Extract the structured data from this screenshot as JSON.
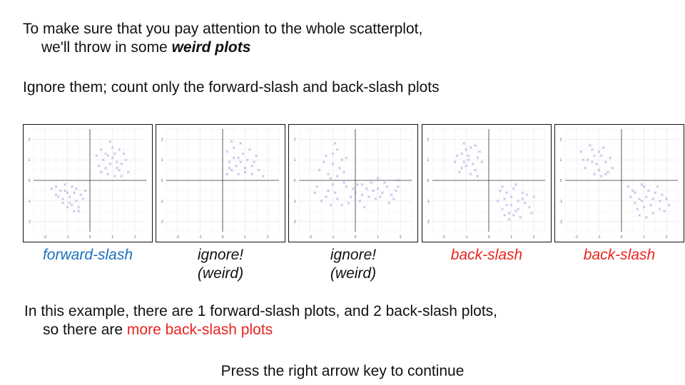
{
  "intro": {
    "line1": "To make sure that you pay attention to the whole scatterplot,",
    "line2_prefix": "we'll throw in some ",
    "line2_emph": "weird plots",
    "line3": "Ignore them; count only the forward-slash and back-slash plots"
  },
  "plots": [
    {
      "caption_lines": [
        "forward-slash"
      ],
      "caption_color": "#1a6fbf"
    },
    {
      "caption_lines": [
        "ignore!",
        "(weird)"
      ],
      "caption_color": "#111111"
    },
    {
      "caption_lines": [
        "ignore!",
        "(weird)"
      ],
      "caption_color": "#111111"
    },
    {
      "caption_lines": [
        "back-slash"
      ],
      "caption_color": "#e8231e"
    },
    {
      "caption_lines": [
        "back-slash"
      ],
      "caption_color": "#e8231e"
    }
  ],
  "conclusion": {
    "line1": "In this example, there are 1 forward-slash plots, and 2 back-slash plots,",
    "line2_prefix": "so there are ",
    "line2_highlight": "more back-slash plots"
  },
  "footer": {
    "instruction": "Press the right arrow key to continue"
  },
  "colors": {
    "highlight": "#e8231e",
    "forward": "#1a6fbf",
    "marker": "#8c86d6"
  },
  "chart_data": [
    {
      "type": "scatter",
      "xlim": [
        -2.5,
        2.5
      ],
      "ylim": [
        -2.5,
        2.5
      ],
      "x_ticks": [
        -2,
        -1,
        0,
        1,
        2
      ],
      "y_ticks": [
        -2,
        -1,
        0,
        1,
        2
      ],
      "grid": true,
      "marker": "x",
      "points": [
        [
          0.5,
          1.5
        ],
        [
          0.8,
          1.2
        ],
        [
          1.0,
          1.6
        ],
        [
          1.2,
          0.9
        ],
        [
          0.7,
          0.6
        ],
        [
          1.5,
          1.3
        ],
        [
          0.9,
          1.9
        ],
        [
          1.3,
          0.5
        ],
        [
          0.6,
          1.0
        ],
        [
          1.1,
          0.2
        ],
        [
          1.4,
          0.8
        ],
        [
          0.4,
          0.7
        ],
        [
          1.7,
          0.4
        ],
        [
          0.8,
          0.3
        ],
        [
          1.0,
          1.1
        ],
        [
          1.3,
          1.5
        ],
        [
          0.7,
          1.3
        ],
        [
          1.6,
          1.0
        ],
        [
          0.5,
          0.4
        ],
        [
          1.2,
          0.6
        ],
        [
          0.9,
          0.8
        ],
        [
          1.4,
          0.2
        ],
        [
          0.3,
          1.2
        ],
        [
          1.1,
          1.3
        ],
        [
          -0.5,
          -1.5
        ],
        [
          -0.8,
          -1.2
        ],
        [
          -1.0,
          -0.6
        ],
        [
          -1.2,
          -0.9
        ],
        [
          -0.7,
          -0.6
        ],
        [
          -1.5,
          -0.3
        ],
        [
          -0.9,
          -1.1
        ],
        [
          -1.3,
          -0.5
        ],
        [
          -0.6,
          -1.0
        ],
        [
          -1.1,
          -0.2
        ],
        [
          -1.4,
          -0.8
        ],
        [
          -0.4,
          -0.7
        ],
        [
          -1.7,
          -0.4
        ],
        [
          -0.8,
          -0.3
        ],
        [
          -1.0,
          -1.3
        ],
        [
          -0.3,
          -0.9
        ],
        [
          -0.6,
          -0.4
        ],
        [
          -1.2,
          -1.1
        ],
        [
          -0.9,
          -0.8
        ],
        [
          -0.5,
          -1.3
        ],
        [
          -1.5,
          -0.7
        ],
        [
          -0.7,
          -1.5
        ],
        [
          -0.2,
          -0.5
        ],
        [
          -1.1,
          -0.5
        ]
      ]
    },
    {
      "type": "scatter",
      "xlim": [
        -2.5,
        2.5
      ],
      "ylim": [
        -2.5,
        2.5
      ],
      "x_ticks": [
        -2,
        -1,
        0,
        1,
        2
      ],
      "y_ticks": [
        -2,
        -1,
        0,
        1,
        2
      ],
      "grid": true,
      "marker": "x",
      "points": [
        [
          0.2,
          1.4
        ],
        [
          0.5,
          1.1
        ],
        [
          0.8,
          1.8
        ],
        [
          1.1,
          1.0
        ],
        [
          0.4,
          0.5
        ],
        [
          1.3,
          0.7
        ],
        [
          0.7,
          0.3
        ],
        [
          1.6,
          0.5
        ],
        [
          0.3,
          0.9
        ],
        [
          1.0,
          0.4
        ],
        [
          0.9,
          1.3
        ],
        [
          1.4,
          0.9
        ],
        [
          0.6,
          0.7
        ],
        [
          1.8,
          0.2
        ],
        [
          0.2,
          0.3
        ],
        [
          0.5,
          1.6
        ],
        [
          1.2,
          1.5
        ],
        [
          0.8,
          0.9
        ],
        [
          1.5,
          1.2
        ],
        [
          0.4,
          1.9
        ],
        [
          1.0,
          0.6
        ],
        [
          0.3,
          0.6
        ],
        [
          0.7,
          1.1
        ],
        [
          1.3,
          0.3
        ]
      ]
    },
    {
      "type": "scatter",
      "xlim": [
        -2.5,
        2.5
      ],
      "ylim": [
        -2.5,
        2.5
      ],
      "x_ticks": [
        -2,
        -1,
        0,
        1,
        2
      ],
      "y_ticks": [
        -2,
        -1,
        0,
        1,
        2
      ],
      "grid": true,
      "marker": "x",
      "points": [
        [
          -1.6,
          0.5
        ],
        [
          -1.3,
          1.2
        ],
        [
          -1.0,
          0.8
        ],
        [
          -0.8,
          1.5
        ],
        [
          -0.6,
          1.0
        ],
        [
          -1.2,
          0.3
        ],
        [
          -0.9,
          1.8
        ],
        [
          -0.5,
          0.4
        ],
        [
          -1.4,
          0.9
        ],
        [
          -0.7,
          0.6
        ],
        [
          -1.0,
          1.3
        ],
        [
          -0.4,
          1.1
        ],
        [
          -1.1,
          0.1
        ],
        [
          -0.8,
          0.2
        ],
        [
          -1.7,
          -0.3
        ],
        [
          -1.2,
          -0.5
        ],
        [
          -0.8,
          -0.9
        ],
        [
          -0.4,
          -0.3
        ],
        [
          0.0,
          -0.6
        ],
        [
          0.3,
          -0.2
        ],
        [
          0.6,
          -0.8
        ],
        [
          1.0,
          -0.4
        ],
        [
          1.3,
          -0.1
        ],
        [
          1.6,
          -0.7
        ],
        [
          1.9,
          -0.3
        ],
        [
          -1.5,
          -1.0
        ],
        [
          -1.0,
          -0.2
        ],
        [
          -0.6,
          -1.2
        ],
        [
          -0.2,
          -0.8
        ],
        [
          0.2,
          -1.0
        ],
        [
          0.5,
          -0.4
        ],
        [
          0.9,
          -0.9
        ],
        [
          1.2,
          -0.6
        ],
        [
          1.5,
          -1.1
        ],
        [
          1.8,
          -0.5
        ],
        [
          -1.3,
          -0.8
        ],
        [
          -0.9,
          -0.6
        ],
        [
          -0.5,
          -0.1
        ],
        [
          -0.1,
          -0.4
        ],
        [
          0.3,
          -0.7
        ],
        [
          0.7,
          -0.1
        ],
        [
          1.1,
          -0.8
        ],
        [
          1.4,
          -0.3
        ],
        [
          1.7,
          -0.9
        ],
        [
          -1.8,
          -0.6
        ],
        [
          0.1,
          -0.2
        ],
        [
          0.8,
          -0.5
        ],
        [
          -0.3,
          -1.1
        ],
        [
          1.0,
          0.1
        ],
        [
          -1.1,
          -1.2
        ],
        [
          0.4,
          -1.3
        ],
        [
          1.9,
          0.0
        ]
      ]
    },
    {
      "type": "scatter",
      "xlim": [
        -2.5,
        2.5
      ],
      "ylim": [
        -2.5,
        2.5
      ],
      "x_ticks": [
        -2,
        -1,
        0,
        1,
        2
      ],
      "y_ticks": [
        -2,
        -1,
        0,
        1,
        2
      ],
      "grid": true,
      "marker": "x",
      "points": [
        [
          -1.5,
          0.9
        ],
        [
          -1.2,
          1.3
        ],
        [
          -1.0,
          0.7
        ],
        [
          -0.8,
          1.6
        ],
        [
          -0.5,
          1.1
        ],
        [
          -1.3,
          0.4
        ],
        [
          -0.9,
          1.0
        ],
        [
          -0.6,
          0.5
        ],
        [
          -1.1,
          1.8
        ],
        [
          -0.7,
          0.8
        ],
        [
          -1.4,
          1.2
        ],
        [
          -0.4,
          1.4
        ],
        [
          -0.8,
          0.3
        ],
        [
          -1.0,
          1.5
        ],
        [
          -0.6,
          1.7
        ],
        [
          -1.2,
          0.6
        ],
        [
          -0.3,
          0.9
        ],
        [
          -0.9,
          1.2
        ],
        [
          -0.5,
          0.2
        ],
        [
          -1.1,
          0.9
        ],
        [
          0.5,
          -0.5
        ],
        [
          0.8,
          -1.2
        ],
        [
          1.0,
          -0.8
        ],
        [
          1.2,
          -1.5
        ],
        [
          1.5,
          -0.6
        ],
        [
          0.7,
          -0.9
        ],
        [
          1.3,
          -1.0
        ],
        [
          0.9,
          -1.6
        ],
        [
          1.6,
          -1.1
        ],
        [
          0.6,
          -0.3
        ],
        [
          1.1,
          -0.4
        ],
        [
          1.4,
          -1.8
        ],
        [
          0.8,
          -0.6
        ],
        [
          1.8,
          -1.3
        ],
        [
          1.0,
          -1.2
        ],
        [
          0.4,
          -1.0
        ],
        [
          1.2,
          -0.2
        ],
        [
          1.7,
          -0.7
        ],
        [
          0.9,
          -1.9
        ],
        [
          1.3,
          -1.4
        ],
        [
          0.6,
          -1.4
        ],
        [
          1.5,
          -0.9
        ],
        [
          1.1,
          -1.7
        ],
        [
          2.0,
          -0.8
        ],
        [
          0.7,
          -1.7
        ],
        [
          1.9,
          -1.6
        ]
      ]
    },
    {
      "type": "scatter",
      "xlim": [
        -2.5,
        2.5
      ],
      "ylim": [
        -2.5,
        2.5
      ],
      "x_ticks": [
        -2,
        -1,
        0,
        1,
        2
      ],
      "y_ticks": [
        -2,
        -1,
        0,
        1,
        2
      ],
      "grid": true,
      "marker": "x",
      "points": [
        [
          -1.8,
          1.4
        ],
        [
          -1.5,
          1.0
        ],
        [
          -1.3,
          1.5
        ],
        [
          -1.1,
          0.8
        ],
        [
          -0.9,
          1.2
        ],
        [
          -1.6,
          0.6
        ],
        [
          -1.2,
          0.3
        ],
        [
          -0.7,
          0.9
        ],
        [
          -1.4,
          1.7
        ],
        [
          -1.0,
          0.5
        ],
        [
          -0.8,
          1.6
        ],
        [
          -0.6,
          0.4
        ],
        [
          -1.7,
          1.0
        ],
        [
          -1.2,
          1.2
        ],
        [
          -0.5,
          1.1
        ],
        [
          -0.9,
          0.2
        ],
        [
          -1.3,
          0.9
        ],
        [
          -0.4,
          0.6
        ],
        [
          -1.0,
          1.4
        ],
        [
          -0.7,
          0.3
        ],
        [
          0.5,
          -0.5
        ],
        [
          0.8,
          -0.9
        ],
        [
          1.0,
          -0.3
        ],
        [
          1.3,
          -1.2
        ],
        [
          1.5,
          -0.6
        ],
        [
          0.7,
          -1.4
        ],
        [
          1.1,
          -0.8
        ],
        [
          1.7,
          -1.0
        ],
        [
          0.4,
          -0.8
        ],
        [
          1.9,
          -1.5
        ],
        [
          0.9,
          -0.2
        ],
        [
          1.4,
          -1.6
        ],
        [
          0.6,
          -1.1
        ],
        [
          2.0,
          -0.9
        ],
        [
          1.2,
          -0.5
        ],
        [
          1.6,
          -0.3
        ],
        [
          0.8,
          -1.7
        ],
        [
          1.8,
          -0.7
        ],
        [
          1.0,
          -1.3
        ],
        [
          0.3,
          -0.3
        ],
        [
          2.1,
          -1.2
        ],
        [
          1.4,
          -0.9
        ],
        [
          0.6,
          -0.6
        ],
        [
          1.1,
          -1.8
        ],
        [
          1.7,
          -1.4
        ],
        [
          0.9,
          -1.0
        ]
      ]
    }
  ]
}
